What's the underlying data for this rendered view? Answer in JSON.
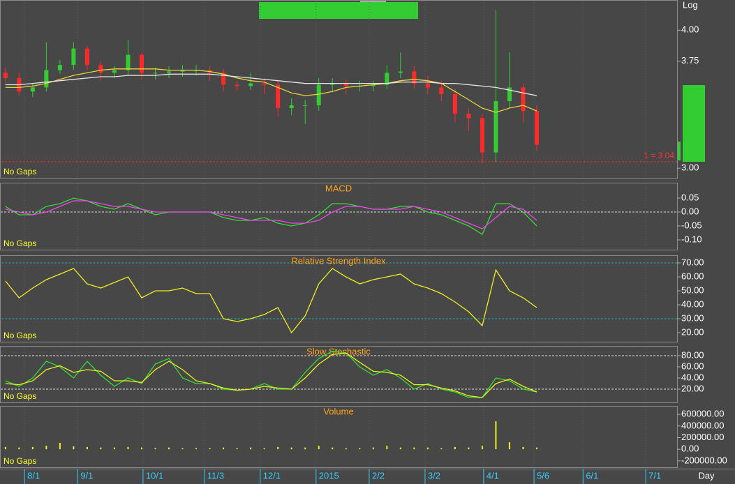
{
  "chart_data": [
    {
      "type": "candlestick",
      "note": "No Gaps",
      "scale_label": "Log",
      "log_scale": true,
      "x": [
        0,
        1,
        2,
        3,
        4,
        5,
        6,
        7,
        8,
        9,
        10,
        11,
        12,
        13,
        14,
        15,
        16,
        17,
        18,
        19,
        20,
        21,
        22,
        23,
        24,
        25,
        26,
        27,
        28,
        29,
        30,
        31,
        32,
        33,
        34,
        35,
        36,
        37,
        38,
        39
      ],
      "xlim": [
        -0.4,
        49.3
      ],
      "ylim": [
        2.94,
        4.26
      ],
      "yticks": [
        {
          "value": 3,
          "label": "3.00"
        },
        {
          "value": 3.75,
          "label": "3.75"
        },
        {
          "value": 4,
          "label": "4.00"
        }
      ],
      "up_color": "#33cc33",
      "down_color": "#ff2a2a",
      "open": [
        3.66,
        3.62,
        3.52,
        3.55,
        3.68,
        3.72,
        3.85,
        3.72,
        3.66,
        3.68,
        3.8,
        3.66,
        3.66,
        3.67,
        3.68,
        3.68,
        3.66,
        3.57,
        3.56,
        3.58,
        3.57,
        3.4,
        3.42,
        3.42,
        3.57,
        3.58,
        3.56,
        3.56,
        3.57,
        3.66,
        3.67,
        3.58,
        3.55,
        3.5,
        3.36,
        3.33,
        3.1,
        3.45,
        3.55,
        3.38
      ],
      "high": [
        3.7,
        3.66,
        3.58,
        3.9,
        3.76,
        3.9,
        3.87,
        3.75,
        3.71,
        3.92,
        3.82,
        3.7,
        3.71,
        3.72,
        3.72,
        3.71,
        3.69,
        3.6,
        3.66,
        3.62,
        3.6,
        3.47,
        3.46,
        3.62,
        3.62,
        3.61,
        3.6,
        3.6,
        3.72,
        3.82,
        3.71,
        3.64,
        3.6,
        3.54,
        3.4,
        3.36,
        4.17,
        3.82,
        3.58,
        3.42
      ],
      "low": [
        3.58,
        3.49,
        3.48,
        3.52,
        3.65,
        3.68,
        3.68,
        3.6,
        3.62,
        3.64,
        3.61,
        3.61,
        3.62,
        3.63,
        3.64,
        3.6,
        3.52,
        3.52,
        3.53,
        3.5,
        3.34,
        3.35,
        3.29,
        3.38,
        3.52,
        3.5,
        3.52,
        3.52,
        3.54,
        3.62,
        3.54,
        3.5,
        3.45,
        3.3,
        3.24,
        3.03,
        3.04,
        3.4,
        3.3,
        3.11
      ],
      "close": [
        3.62,
        3.52,
        3.55,
        3.68,
        3.72,
        3.85,
        3.72,
        3.66,
        3.68,
        3.8,
        3.66,
        3.66,
        3.67,
        3.68,
        3.68,
        3.66,
        3.57,
        3.56,
        3.58,
        3.57,
        3.4,
        3.42,
        3.42,
        3.57,
        3.58,
        3.56,
        3.56,
        3.57,
        3.66,
        3.67,
        3.58,
        3.55,
        3.5,
        3.36,
        3.33,
        3.1,
        3.45,
        3.55,
        3.38,
        3.15
      ],
      "series": [
        {
          "color": "#e8d33a",
          "values": [
            3.55,
            3.55,
            3.56,
            3.58,
            3.61,
            3.64,
            3.66,
            3.68,
            3.69,
            3.69,
            3.69,
            3.69,
            3.68,
            3.68,
            3.68,
            3.67,
            3.65,
            3.62,
            3.6,
            3.59,
            3.55,
            3.51,
            3.49,
            3.5,
            3.52,
            3.55,
            3.56,
            3.57,
            3.58,
            3.6,
            3.61,
            3.6,
            3.58,
            3.52,
            3.46,
            3.4,
            3.37,
            3.4,
            3.42,
            3.38
          ]
        },
        {
          "color": "#e6e6e6",
          "values": [
            3.57,
            3.57,
            3.58,
            3.59,
            3.6,
            3.61,
            3.62,
            3.63,
            3.63,
            3.64,
            3.64,
            3.64,
            3.65,
            3.65,
            3.65,
            3.65,
            3.64,
            3.63,
            3.62,
            3.61,
            3.6,
            3.59,
            3.58,
            3.58,
            3.58,
            3.58,
            3.58,
            3.58,
            3.58,
            3.59,
            3.59,
            3.59,
            3.58,
            3.58,
            3.57,
            3.56,
            3.55,
            3.53,
            3.51,
            3.49
          ]
        }
      ],
      "hlines": [
        {
          "value": 3.04,
          "label": "1 = 3.04",
          "color": "#ff3333"
        }
      ]
    },
    {
      "type": "line",
      "title": "MACD",
      "note": "No Gaps",
      "x": [
        0,
        1,
        2,
        3,
        4,
        5,
        6,
        7,
        8,
        9,
        10,
        11,
        12,
        13,
        14,
        15,
        16,
        17,
        18,
        19,
        20,
        21,
        22,
        23,
        24,
        25,
        26,
        27,
        28,
        29,
        30,
        31,
        32,
        33,
        34,
        35,
        36,
        37,
        38,
        39
      ],
      "xlim": [
        -0.4,
        49.3
      ],
      "ylim": [
        -0.135,
        0.105
      ],
      "yticks": [
        {
          "value": 0.05,
          "label": "0.05"
        },
        {
          "value": 0,
          "label": "0.00"
        },
        {
          "value": -0.05,
          "label": "-0.05"
        },
        {
          "value": -0.1,
          "label": "-0.10"
        }
      ],
      "series": [
        {
          "color": "#33dd33",
          "values": [
            0.02,
            -0.01,
            -0.01,
            0.02,
            0.03,
            0.05,
            0.04,
            0.02,
            0.01,
            0.03,
            0.01,
            -0.01,
            0.0,
            0.0,
            0.0,
            0.0,
            -0.02,
            -0.03,
            -0.03,
            -0.02,
            -0.04,
            -0.05,
            -0.04,
            -0.01,
            0.03,
            0.03,
            0.02,
            0.01,
            0.01,
            0.02,
            0.02,
            0.0,
            -0.01,
            -0.03,
            -0.05,
            -0.08,
            0.03,
            0.03,
            0.0,
            -0.05
          ]
        },
        {
          "color": "#ee44ee",
          "values": [
            0.01,
            0.0,
            -0.01,
            0.0,
            0.02,
            0.04,
            0.04,
            0.03,
            0.02,
            0.02,
            0.01,
            0.0,
            0.0,
            0.0,
            0.0,
            0.0,
            -0.01,
            -0.02,
            -0.03,
            -0.03,
            -0.03,
            -0.04,
            -0.04,
            -0.03,
            0.0,
            0.02,
            0.02,
            0.01,
            0.01,
            0.01,
            0.02,
            0.01,
            0.0,
            -0.02,
            -0.04,
            -0.06,
            -0.02,
            0.02,
            0.01,
            -0.03
          ]
        }
      ],
      "hlines": [
        {
          "value": 0,
          "color": "#dddddd",
          "dashed": true
        }
      ]
    },
    {
      "type": "line",
      "title": "Relative Strength Index",
      "note": "No Gaps",
      "x": [
        0,
        1,
        2,
        3,
        4,
        5,
        6,
        7,
        8,
        9,
        10,
        11,
        12,
        13,
        14,
        15,
        16,
        17,
        18,
        19,
        20,
        21,
        22,
        23,
        24,
        25,
        26,
        27,
        28,
        29,
        30,
        31,
        32,
        33,
        34,
        35,
        36,
        37,
        38,
        39
      ],
      "xlim": [
        -0.4,
        49.3
      ],
      "ylim": [
        13.5,
        75.5
      ],
      "yticks": [
        {
          "value": 70,
          "label": "70.00"
        },
        {
          "value": 60,
          "label": "60.00"
        },
        {
          "value": 50,
          "label": "50.00"
        },
        {
          "value": 40,
          "label": "40.00"
        },
        {
          "value": 30,
          "label": "30.00"
        },
        {
          "value": 20,
          "label": "20.00"
        }
      ],
      "series": [
        {
          "color": "#eeee22",
          "values": [
            57,
            45,
            52,
            58,
            62,
            66,
            55,
            52,
            56,
            60,
            45,
            50,
            50,
            52,
            48,
            48,
            30,
            28,
            30,
            33,
            38,
            20,
            32,
            55,
            66,
            60,
            55,
            58,
            60,
            62,
            55,
            52,
            48,
            42,
            35,
            25,
            65,
            50,
            45,
            38
          ]
        }
      ],
      "hlines": [
        {
          "value": 70,
          "color": "#22bbbb"
        },
        {
          "value": 30,
          "color": "#22bbbb"
        }
      ]
    },
    {
      "type": "line",
      "title": "Slow Stochastic",
      "note": "No Gaps",
      "x": [
        0,
        1,
        2,
        3,
        4,
        5,
        6,
        7,
        8,
        9,
        10,
        11,
        12,
        13,
        14,
        15,
        16,
        17,
        18,
        19,
        20,
        21,
        22,
        23,
        24,
        25,
        26,
        27,
        28,
        29,
        30,
        31,
        32,
        33,
        34,
        35,
        36,
        37,
        38,
        39
      ],
      "xlim": [
        -0.4,
        49.3
      ],
      "ylim": [
        -3.75,
        97.5
      ],
      "yticks": [
        {
          "value": 80,
          "label": "80.00"
        },
        {
          "value": 60,
          "label": "60.00"
        },
        {
          "value": 40,
          "label": "40.00"
        },
        {
          "value": 20,
          "label": "20.00"
        }
      ],
      "series": [
        {
          "color": "#33dd33",
          "values": [
            35,
            25,
            40,
            70,
            60,
            40,
            70,
            45,
            25,
            40,
            30,
            65,
            75,
            40,
            30,
            30,
            20,
            18,
            20,
            30,
            20,
            20,
            50,
            75,
            88,
            85,
            60,
            45,
            55,
            40,
            20,
            30,
            20,
            15,
            5,
            5,
            40,
            35,
            20,
            15
          ]
        },
        {
          "color": "#eeee22",
          "values": [
            30,
            28,
            35,
            55,
            62,
            50,
            55,
            52,
            35,
            35,
            32,
            55,
            70,
            55,
            35,
            30,
            22,
            18,
            20,
            25,
            22,
            20,
            40,
            65,
            82,
            85,
            68,
            52,
            50,
            45,
            28,
            28,
            22,
            17,
            8,
            5,
            30,
            38,
            25,
            15
          ]
        }
      ],
      "hlines": [
        {
          "value": 80,
          "color": "#dddddd",
          "dashed": true
        },
        {
          "value": 20,
          "color": "#dddddd",
          "dashed": true
        }
      ]
    },
    {
      "type": "bar",
      "title": "Volume",
      "note": "No Gaps",
      "color": "#eeee22",
      "xlabel": "Day",
      "x": [
        0,
        1,
        2,
        3,
        4,
        5,
        6,
        7,
        8,
        9,
        10,
        11,
        12,
        13,
        14,
        15,
        16,
        17,
        18,
        19,
        20,
        21,
        22,
        23,
        24,
        25,
        26,
        27,
        28,
        29,
        30,
        31,
        32,
        33,
        34,
        35,
        36,
        37,
        38,
        39
      ],
      "xlim": [
        -0.4,
        49.3
      ],
      "ylim": [
        -310000,
        746000
      ],
      "yticks": [
        {
          "value": 600000,
          "label": "600000.00"
        },
        {
          "value": 400000,
          "label": "400000.00"
        },
        {
          "value": 200000,
          "label": "200000.00"
        },
        {
          "value": 0,
          "label": "0.00"
        },
        {
          "value": -200000,
          "label": "-200000.00"
        }
      ],
      "values": [
        40000,
        30000,
        40000,
        60000,
        110000,
        50000,
        40000,
        30000,
        30000,
        40000,
        30000,
        20000,
        30000,
        20000,
        20000,
        20000,
        30000,
        20000,
        30000,
        20000,
        40000,
        30000,
        30000,
        60000,
        30000,
        20000,
        20000,
        30000,
        60000,
        30000,
        30000,
        30000,
        20000,
        40000,
        30000,
        60000,
        480000,
        120000,
        40000,
        30000
      ],
      "xticks": [
        {
          "value": 1.4,
          "label": "8/1"
        },
        {
          "value": 5.3,
          "label": "9/1"
        },
        {
          "value": 10.1,
          "label": "10/1"
        },
        {
          "value": 14.6,
          "label": "11/3"
        },
        {
          "value": 18.7,
          "label": "12/1"
        },
        {
          "value": 22.8,
          "label": "2015"
        },
        {
          "value": 26.7,
          "label": "2/2"
        },
        {
          "value": 30.8,
          "label": "3/2"
        },
        {
          "value": 35.1,
          "label": "4/1"
        },
        {
          "value": 38.8,
          "label": "5/6"
        },
        {
          "value": 42.4,
          "label": "6/1"
        },
        {
          "value": 47.0,
          "label": "7/1"
        }
      ]
    }
  ]
}
